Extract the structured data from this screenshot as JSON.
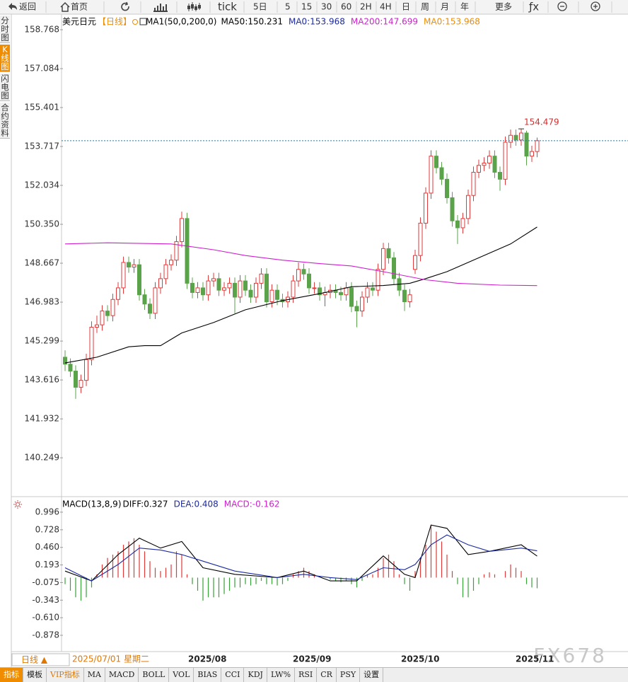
{
  "toolbar": [
    "返回",
    "首页",
    "tick",
    "5日",
    "5",
    "15",
    "30",
    "60",
    "2H",
    "4H",
    "日",
    "周",
    "月",
    "年",
    "更多",
    "ƒx"
  ],
  "side_tabs": [
    "分时图",
    "K线图",
    "闪电图",
    "合约资料"
  ],
  "chart_data": [
    {
      "type": "candlestick",
      "title": "美元日元",
      "period": "【日线】",
      "indicator": "MA1(50,0,200,0)",
      "legend": [
        {
          "label": "MA50:150.231",
          "color": "#000000"
        },
        {
          "label": "MA0:153.968",
          "color": "#1c2aa0"
        },
        {
          "label": "MA200:147.699",
          "color": "#d020d0"
        },
        {
          "label": "MA0:153.968",
          "color": "#f08c00"
        }
      ],
      "up_color": "#e03a3a",
      "down_color": "#5aa34a",
      "ylim": [
        138.63,
        159.38
      ],
      "yticks": [
        158.768,
        157.084,
        155.401,
        153.717,
        152.034,
        {
          "value": 150.35,
          "label": "150.350"
        },
        148.667,
        146.983,
        145.299,
        143.616,
        141.932,
        140.249
      ],
      "last_price": 153.968,
      "max_price": 154.479,
      "ohlc": [
        [
          144.6,
          144.9,
          144.0,
          144.3
        ],
        [
          144.3,
          144.55,
          143.75,
          144.0
        ],
        [
          144.0,
          144.25,
          142.8,
          143.3
        ],
        [
          143.3,
          143.85,
          143.05,
          143.6
        ],
        [
          143.6,
          144.75,
          143.35,
          144.5
        ],
        [
          144.5,
          146.15,
          144.25,
          145.9
        ],
        [
          145.9,
          146.4,
          145.65,
          146.0
        ],
        [
          146.0,
          146.85,
          145.75,
          146.6
        ],
        [
          146.6,
          146.85,
          146.15,
          146.4
        ],
        [
          146.4,
          147.35,
          146.15,
          147.1
        ],
        [
          147.1,
          147.85,
          146.85,
          147.6
        ],
        [
          147.6,
          148.95,
          147.35,
          148.7
        ],
        [
          148.7,
          148.95,
          148.25,
          148.5
        ],
        [
          148.5,
          148.85,
          148.25,
          148.6
        ],
        [
          148.6,
          148.85,
          147.05,
          147.3
        ],
        [
          147.3,
          147.55,
          146.65,
          146.9
        ],
        [
          146.9,
          147.15,
          146.25,
          146.5
        ],
        [
          146.5,
          147.85,
          146.25,
          147.6
        ],
        [
          147.6,
          148.25,
          147.35,
          148.0
        ],
        [
          148.0,
          148.85,
          147.75,
          148.6
        ],
        [
          148.6,
          149.05,
          148.35,
          148.8
        ],
        [
          148.8,
          149.85,
          148.55,
          149.6
        ],
        [
          149.6,
          150.9,
          149.35,
          150.6
        ],
        [
          150.6,
          150.85,
          147.55,
          147.8
        ],
        [
          147.8,
          148.05,
          147.15,
          147.4
        ],
        [
          147.4,
          147.85,
          147.15,
          147.6
        ],
        [
          147.6,
          147.85,
          147.05,
          147.3
        ],
        [
          147.3,
          148.15,
          147.05,
          147.9
        ],
        [
          147.9,
          148.25,
          147.65,
          148.0
        ],
        [
          148.0,
          148.25,
          147.25,
          147.5
        ],
        [
          147.5,
          147.85,
          147.25,
          147.6
        ],
        [
          147.6,
          148.05,
          147.35,
          147.8
        ],
        [
          147.8,
          148.05,
          146.5,
          147.2
        ],
        [
          147.2,
          148.15,
          146.95,
          147.9
        ],
        [
          147.9,
          148.15,
          147.25,
          147.5
        ],
        [
          147.5,
          147.75,
          146.95,
          147.2
        ],
        [
          147.2,
          148.05,
          146.95,
          147.8
        ],
        [
          147.8,
          148.45,
          147.55,
          148.2
        ],
        [
          148.2,
          148.45,
          146.75,
          147.0
        ],
        [
          147.0,
          147.75,
          146.75,
          147.5
        ],
        [
          147.5,
          147.75,
          146.85,
          147.1
        ],
        [
          147.1,
          147.35,
          146.75,
          147.0
        ],
        [
          147.0,
          147.45,
          146.75,
          147.2
        ],
        [
          147.2,
          148.15,
          146.95,
          147.9
        ],
        [
          147.9,
          148.7,
          147.65,
          148.4
        ],
        [
          148.4,
          148.65,
          147.95,
          148.2
        ],
        [
          148.2,
          148.45,
          147.35,
          147.6
        ],
        [
          147.6,
          147.85,
          147.35,
          147.6
        ],
        [
          147.6,
          147.85,
          147.05,
          147.3
        ],
        [
          147.3,
          147.65,
          146.8,
          147.4
        ],
        [
          147.4,
          147.75,
          147.15,
          147.5
        ],
        [
          147.5,
          147.75,
          147.15,
          147.4
        ],
        [
          147.4,
          147.65,
          147.05,
          147.3
        ],
        [
          147.3,
          147.85,
          147.05,
          147.6
        ],
        [
          147.6,
          147.85,
          146.55,
          146.8
        ],
        [
          146.8,
          147.05,
          145.9,
          146.6
        ],
        [
          146.6,
          147.45,
          146.35,
          147.2
        ],
        [
          147.2,
          147.85,
          146.95,
          147.6
        ],
        [
          147.6,
          147.85,
          147.25,
          147.5
        ],
        [
          147.5,
          148.65,
          147.25,
          148.4
        ],
        [
          148.4,
          149.55,
          148.15,
          149.3
        ],
        [
          149.3,
          149.55,
          148.65,
          148.9
        ],
        [
          148.9,
          149.15,
          147.75,
          148.0
        ],
        [
          148.0,
          148.25,
          147.25,
          147.5
        ],
        [
          147.5,
          147.75,
          146.6,
          147.0
        ],
        [
          147.0,
          147.55,
          146.75,
          147.3
        ],
        [
          148.4,
          149.25,
          148.2,
          149.0
        ],
        [
          149.0,
          150.65,
          148.75,
          150.4
        ],
        [
          150.4,
          151.95,
          150.15,
          151.7
        ],
        [
          151.7,
          153.55,
          151.45,
          153.3
        ],
        [
          153.3,
          153.55,
          152.55,
          152.8
        ],
        [
          152.8,
          153.05,
          152.05,
          152.3
        ],
        [
          152.3,
          152.55,
          151.25,
          151.5
        ],
        [
          151.5,
          151.75,
          150.25,
          150.5
        ],
        [
          150.5,
          150.75,
          149.5,
          150.2
        ],
        [
          150.2,
          150.85,
          149.95,
          150.6
        ],
        [
          150.6,
          151.85,
          150.35,
          151.6
        ],
        [
          151.6,
          152.85,
          151.35,
          152.6
        ],
        [
          152.6,
          153.15,
          152.35,
          152.9
        ],
        [
          152.9,
          153.25,
          152.65,
          153.0
        ],
        [
          153.0,
          153.55,
          152.75,
          153.3
        ],
        [
          153.3,
          153.55,
          152.35,
          152.6
        ],
        [
          152.6,
          152.85,
          151.8,
          152.3
        ],
        [
          152.3,
          154.15,
          152.05,
          153.9
        ],
        [
          153.9,
          154.45,
          153.65,
          154.2
        ],
        [
          154.2,
          154.45,
          153.75,
          154.0
        ],
        [
          154.0,
          154.479,
          153.75,
          154.3
        ],
        [
          154.3,
          154.4,
          152.9,
          153.3
        ],
        [
          153.3,
          153.75,
          153.05,
          153.5
        ],
        [
          153.5,
          154.1,
          153.25,
          153.968
        ]
      ],
      "lines": [
        {
          "color": "#000000",
          "x": [
            0,
            6,
            12,
            15,
            18,
            22,
            28,
            34,
            41,
            48,
            54,
            60,
            65,
            68,
            72,
            78,
            84,
            89
          ],
          "values": [
            144.35,
            144.6,
            145.05,
            145.1,
            145.1,
            145.65,
            146.1,
            146.65,
            147.05,
            147.35,
            147.65,
            147.7,
            147.8,
            148.0,
            148.3,
            148.9,
            149.5,
            150.231
          ]
        },
        {
          "color": "#d020d0",
          "x": [
            0,
            8,
            20,
            28,
            34,
            41,
            48,
            54,
            60,
            68,
            74,
            82,
            89
          ],
          "values": [
            149.5,
            149.55,
            149.5,
            149.25,
            149.0,
            148.8,
            148.65,
            148.55,
            148.3,
            147.95,
            147.8,
            147.72,
            147.699
          ]
        }
      ]
    },
    {
      "type": "macd",
      "title": "MACD(13,8,9)",
      "legend": [
        {
          "label": "DIFF:0.327",
          "color": "#000000"
        },
        {
          "label": "DEA:0.408",
          "color": "#1c2aa0"
        },
        {
          "label": "MACD:-0.162",
          "color": "#d020d0"
        }
      ],
      "ylim": [
        -1.115,
        1.2
      ],
      "yticks": [
        0.996,
        0.728,
        {
          "value": 0.46,
          "label": "0.460"
        },
        0.193,
        -0.075,
        -0.343,
        {
          "value": -0.61,
          "label": "-0.610"
        },
        -0.878
      ],
      "up_color": "#e03a3a",
      "down_color": "#3aa03a",
      "histogram": [
        -0.1,
        -0.2,
        -0.3,
        -0.35,
        -0.3,
        -0.15,
        0.05,
        0.2,
        0.3,
        0.35,
        0.4,
        0.5,
        0.55,
        0.6,
        0.5,
        0.4,
        0.25,
        0.15,
        0.1,
        0.15,
        0.2,
        0.4,
        0.35,
        0.05,
        -0.1,
        -0.2,
        -0.35,
        -0.3,
        -0.3,
        -0.3,
        -0.25,
        -0.2,
        -0.15,
        -0.15,
        -0.1,
        -0.12,
        -0.1,
        -0.05,
        -0.1,
        -0.1,
        -0.12,
        -0.1,
        -0.05,
        0.05,
        0.1,
        0.15,
        0.1,
        0.05,
        0,
        0,
        -0.03,
        -0.05,
        -0.07,
        -0.05,
        -0.1,
        -0.15,
        -0.05,
        0.05,
        0.05,
        0.15,
        0.3,
        0.35,
        0.25,
        0.05,
        -0.1,
        -0.2,
        0.1,
        0.3,
        0.5,
        0.8,
        0.7,
        0.55,
        0.35,
        0.1,
        -0.1,
        -0.3,
        -0.3,
        -0.2,
        -0.1,
        0.05,
        0.08,
        0.05,
        0,
        0.1,
        0.2,
        0.15,
        0.1,
        -0.1,
        -0.15,
        -0.162
      ],
      "lines": [
        {
          "color": "#000000",
          "x": [
            0,
            5,
            10,
            14,
            18,
            22,
            26,
            32,
            40,
            45,
            50,
            55,
            60,
            64,
            66,
            69,
            72,
            76,
            80,
            86,
            89
          ],
          "values": [
            0.1,
            -0.05,
            0.35,
            0.6,
            0.45,
            0.55,
            0.15,
            0.05,
            0,
            0.1,
            -0.05,
            -0.05,
            0.33,
            0.05,
            0,
            0.8,
            0.75,
            0.35,
            0.4,
            0.5,
            0.327
          ]
        },
        {
          "color": "#1c2aa0",
          "x": [
            0,
            5,
            10,
            14,
            18,
            22,
            26,
            32,
            40,
            45,
            50,
            55,
            60,
            64,
            66,
            69,
            72,
            76,
            80,
            86,
            89
          ],
          "values": [
            0.15,
            -0.05,
            0.2,
            0.45,
            0.42,
            0.35,
            0.25,
            0.1,
            0,
            0.05,
            0,
            -0.03,
            0.15,
            0.12,
            0.2,
            0.5,
            0.65,
            0.5,
            0.4,
            0.45,
            0.408
          ]
        }
      ]
    }
  ],
  "date_labels": [
    "2025/07/01 星期二",
    "2025/08",
    "2025/09",
    "2025/10",
    "2025/11"
  ],
  "period_button": "日线 ▲",
  "footer_tabs": [
    "指标",
    "模板",
    "VIP指标",
    "MA",
    "MACD",
    "BOLL",
    "VOL",
    "BIAS",
    "CCI",
    "KDJ",
    "LW%",
    "RSI",
    "CR",
    "PSY",
    "设置"
  ],
  "watermark": "FX678"
}
